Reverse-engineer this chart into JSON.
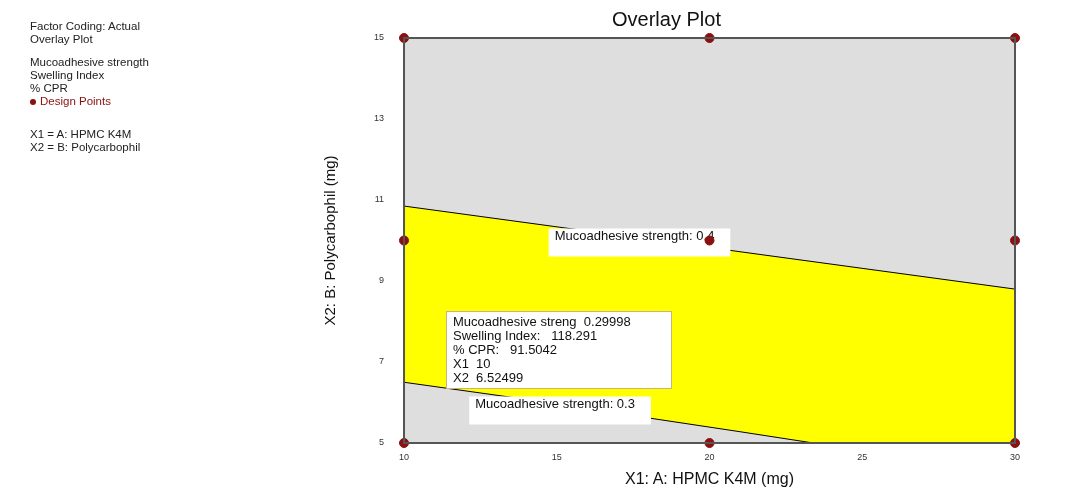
{
  "chart_data": {
    "type": "scatter",
    "title": "Overlay Plot",
    "xlabel": "X1: A: HPMC K4M (mg)",
    "ylabel": "X2: B: Polycarbophil (mg)",
    "xlim": [
      10,
      30
    ],
    "ylim": [
      5,
      15
    ],
    "xticks": [
      10,
      15,
      20,
      25,
      30
    ],
    "yticks": [
      5,
      7,
      9,
      11,
      13,
      15
    ],
    "grid": false,
    "legend": "left",
    "marker": "circle",
    "series": [
      {
        "type": "area",
        "color": "#ffff00",
        "marker": "none",
        "x": [
          10,
          30
        ],
        "values": [
          10.85,
          8.8
        ]
      },
      {
        "type": "area",
        "color": "#dedede",
        "marker": "none",
        "x": [
          10,
          13.5,
          20.9,
          23.4,
          30
        ],
        "values": [
          6.5,
          6.13,
          5.29,
          5,
          5
        ]
      },
      {
        "type": "scatter",
        "name": "Design Points",
        "color": "#8b1010",
        "x": [
          10,
          20,
          30,
          10,
          20,
          30,
          10,
          20,
          30
        ],
        "values": [
          5,
          5,
          5,
          10,
          10,
          10,
          15,
          15,
          15
        ]
      }
    ],
    "annotations": [
      "Factor Coding: Actual",
      "Overlay Plot",
      "Mucoadhesive strength",
      "Swelling Index",
      "% CPR",
      "X1 = A: HPMC K4M",
      "X2 = B: Polycarbophil",
      "Mucoadhesive strength: 0.4",
      "Mucoadhesive strength: 0.3",
      "Mucoadhesive streng  0.29998\nSwelling Index:   118.291\n% CPR:   91.5042\nX1  10\nX2  6.52499"
    ]
  }
}
